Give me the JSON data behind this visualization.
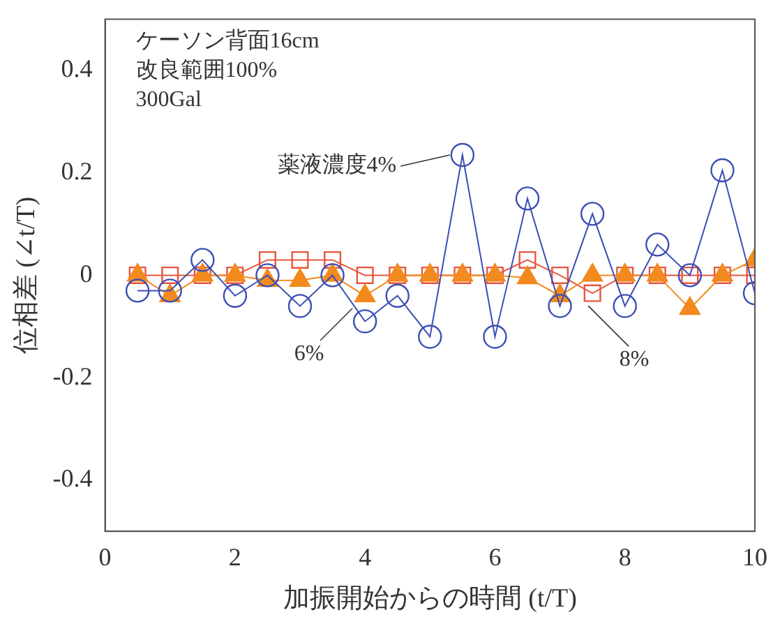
{
  "chart_data": {
    "type": "line",
    "x": [
      0.5,
      1,
      1.5,
      2,
      2.5,
      3,
      3.5,
      4,
      4.5,
      5,
      5.5,
      6,
      6.5,
      7,
      7.5,
      8,
      8.5,
      9,
      9.5,
      10
    ],
    "series": [
      {
        "color": "#3a4fb5",
        "marker": "circle",
        "values": [
          -0.03,
          -0.03,
          0.03,
          -0.04,
          0,
          -0.06,
          0,
          -0.09,
          -0.04,
          -0.12,
          0.235,
          -0.12,
          0.15,
          -0.06,
          0.12,
          -0.06,
          0.06,
          0,
          0.205,
          -0.035
        ]
      },
      {
        "color": "#f28a1e",
        "marker": "triangle",
        "values": [
          0,
          -0.04,
          0,
          0,
          -0.01,
          -0.01,
          0,
          -0.04,
          0,
          0,
          0,
          0,
          -0.005,
          -0.04,
          0,
          0,
          0,
          -0.065,
          0,
          0.03
        ]
      },
      {
        "color": "#e8553f",
        "marker": "square",
        "values": [
          0,
          0,
          0,
          0,
          0.03,
          0.03,
          0.03,
          0,
          0,
          0,
          0,
          0,
          0.03,
          0,
          -0.035,
          0,
          0,
          0,
          0,
          0
        ]
      }
    ],
    "xlabel": "加振開始からの時間 (t/T)",
    "ylabel": "位相差 (∠t/T)",
    "xlim": [
      0,
      10
    ],
    "xticks": [
      0,
      2,
      4,
      6,
      8,
      10
    ],
    "ylim": [
      -0.5,
      0.5
    ],
    "yticks": [
      -0.4,
      -0.2,
      0,
      0.2,
      0.4
    ],
    "grid": false,
    "legend": false,
    "annotations": [
      "ケーソン背面16cm",
      "改良範囲100%",
      "300Gal",
      {
        "text": "薬液濃度4%",
        "x": 5.5,
        "y": 0.235
      },
      {
        "text": "6%",
        "x": 4,
        "y": -0.04
      },
      {
        "text": "8%",
        "x": 7.5,
        "y": -0.035
      }
    ]
  }
}
